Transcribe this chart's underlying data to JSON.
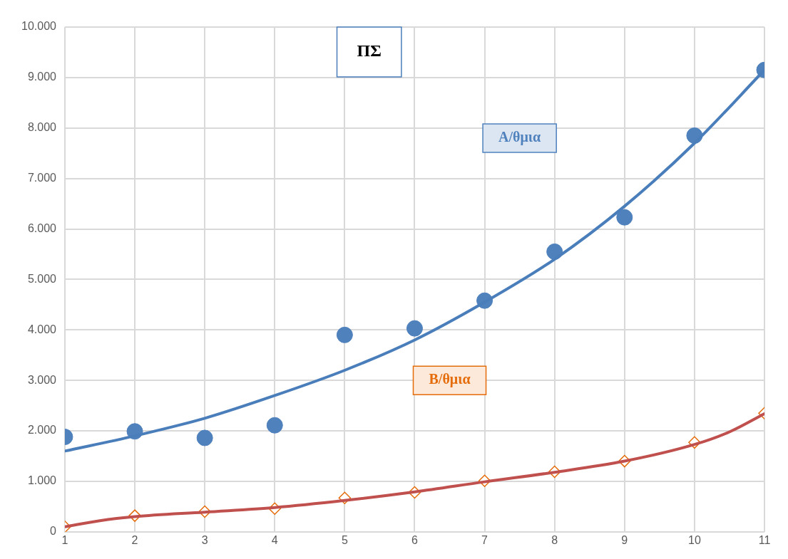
{
  "chart_data": {
    "type": "scatter",
    "title": "ΠΣ",
    "xlim": [
      1,
      11
    ],
    "xticks": [
      1,
      2,
      3,
      4,
      5,
      6,
      7,
      8,
      9,
      10,
      11
    ],
    "ylim": [
      0,
      10000
    ],
    "yticks": [
      {
        "value": 0,
        "label": "0"
      },
      {
        "value": 1000,
        "label": "1.000"
      },
      {
        "value": 2000,
        "label": "2.000"
      },
      {
        "value": 3000,
        "label": "3.000"
      },
      {
        "value": 4000,
        "label": "4.000"
      },
      {
        "value": 5000,
        "label": "5.000"
      },
      {
        "value": 6000,
        "label": "6.000"
      },
      {
        "value": 7000,
        "label": "7.000"
      },
      {
        "value": 8000,
        "label": "8.000"
      },
      {
        "value": 9000,
        "label": "9.000"
      },
      {
        "value": 10000,
        "label": "10.000"
      }
    ],
    "grid": true,
    "legend": false,
    "series": [
      {
        "type": "line",
        "color": "#4a7ebb",
        "marker": "none",
        "line_style": "solid",
        "x": [
          1,
          2,
          3,
          4,
          5,
          6,
          7,
          8,
          9,
          10,
          11
        ],
        "values": [
          1600,
          1900,
          2250,
          2700,
          3200,
          3800,
          4550,
          5400,
          6450,
          7700,
          9150
        ]
      },
      {
        "type": "line",
        "color": "#c0504d",
        "marker": "none",
        "line_style": "solid",
        "x": [
          1,
          1.5,
          2,
          3,
          4,
          5,
          6,
          7,
          8,
          9,
          10,
          10.5,
          11
        ],
        "values": [
          100,
          220,
          300,
          390,
          480,
          620,
          790,
          990,
          1180,
          1400,
          1730,
          1980,
          2340
        ]
      },
      {
        "name": "A/θμια",
        "color": "#4f81bd",
        "marker": "circle",
        "x": [
          1,
          2,
          3,
          4,
          5,
          6,
          7,
          8,
          9,
          10,
          11
        ],
        "values": [
          1880,
          1990,
          1860,
          2110,
          3900,
          4030,
          4580,
          5550,
          6230,
          7850,
          9150
        ]
      },
      {
        "name": "B/θμια",
        "color": "#e46c0a",
        "marker": "diamond",
        "x": [
          1,
          2,
          3,
          4,
          5,
          6,
          7,
          8,
          9,
          10,
          11
        ],
        "values": [
          100,
          320,
          400,
          460,
          670,
          780,
          1010,
          1190,
          1400,
          1770,
          2350
        ]
      }
    ]
  }
}
